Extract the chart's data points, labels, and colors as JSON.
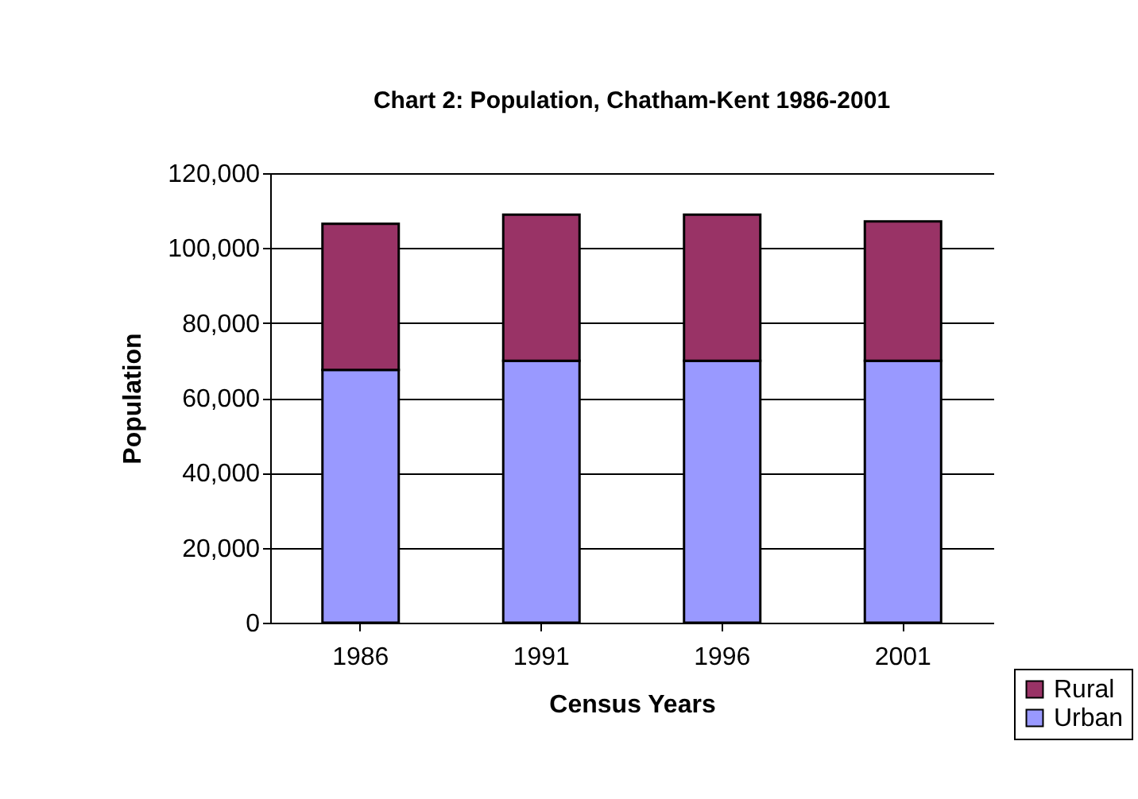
{
  "chart_data": {
    "type": "bar",
    "title": "Chart 2: Population, Chatham-Kent 1986-2001",
    "xlabel": "Census Years",
    "ylabel": "Population",
    "categories": [
      "1986",
      "1991",
      "1996",
      "2001"
    ],
    "series": [
      {
        "name": "Urban",
        "color": "#9999ff",
        "values": [
          67500,
          69900,
          69900,
          69900
        ]
      },
      {
        "name": "Rural",
        "color": "#993366",
        "values": [
          39000,
          39000,
          39000,
          37200
        ]
      }
    ],
    "stacked": true,
    "ylim": [
      0,
      120000
    ],
    "yticks": [
      0,
      {
        "value": 20000,
        "label": "20,000"
      },
      {
        "value": 40000,
        "label": "40,000"
      },
      {
        "value": 60000,
        "label": "60,000"
      },
      {
        "value": 80000,
        "label": "80,000"
      },
      {
        "value": 100000,
        "label": "100,000"
      },
      {
        "value": 120000,
        "label": "120,000"
      }
    ],
    "grid": "y",
    "legend": "bottom right"
  }
}
